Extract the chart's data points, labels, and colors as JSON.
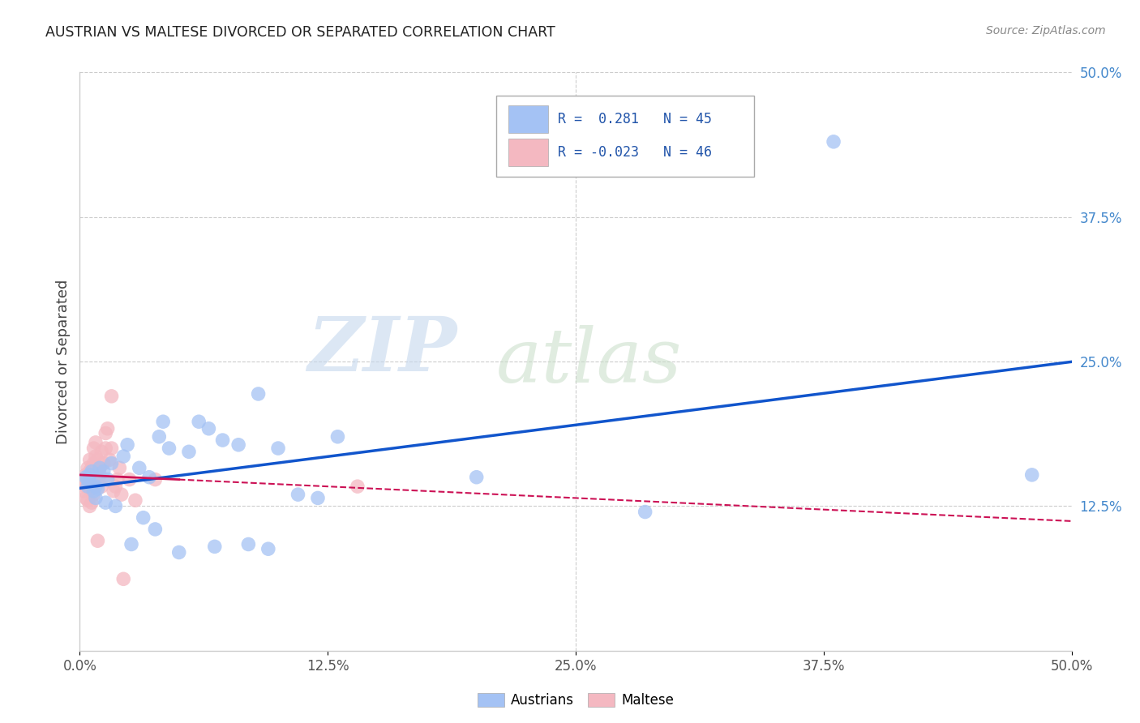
{
  "title": "AUSTRIAN VS MALTESE DIVORCED OR SEPARATED CORRELATION CHART",
  "source": "Source: ZipAtlas.com",
  "ylabel": "Divorced or Separated",
  "xlim": [
    0.0,
    0.5
  ],
  "ylim": [
    0.0,
    0.5
  ],
  "xtick_labels": [
    "0.0%",
    "12.5%",
    "25.0%",
    "37.5%",
    "50.0%"
  ],
  "xtick_values": [
    0.0,
    0.125,
    0.25,
    0.375,
    0.5
  ],
  "ytick_labels_right": [
    "50.0%",
    "37.5%",
    "25.0%",
    "12.5%"
  ],
  "ytick_values_right": [
    0.5,
    0.375,
    0.25,
    0.125
  ],
  "austrian_color": "#a4c2f4",
  "maltese_color": "#f4b8c1",
  "austrian_line_color": "#1155cc",
  "maltese_line_color": "#cc1155",
  "legend_austrian_label": "Austrians",
  "legend_maltese_label": "Maltese",
  "R_austrian": 0.281,
  "N_austrian": 45,
  "R_maltese": -0.023,
  "N_maltese": 46,
  "austrians_x": [
    0.003,
    0.004,
    0.004,
    0.005,
    0.005,
    0.006,
    0.007,
    0.007,
    0.008,
    0.008,
    0.009,
    0.01,
    0.012,
    0.013,
    0.014,
    0.016,
    0.018,
    0.022,
    0.024,
    0.026,
    0.03,
    0.032,
    0.035,
    0.038,
    0.04,
    0.042,
    0.045,
    0.05,
    0.055,
    0.06,
    0.065,
    0.068,
    0.072,
    0.08,
    0.085,
    0.09,
    0.095,
    0.1,
    0.11,
    0.12,
    0.13,
    0.2,
    0.285,
    0.38,
    0.48
  ],
  "austrians_y": [
    0.15,
    0.148,
    0.142,
    0.152,
    0.145,
    0.155,
    0.148,
    0.138,
    0.142,
    0.132,
    0.14,
    0.158,
    0.155,
    0.128,
    0.148,
    0.162,
    0.125,
    0.168,
    0.178,
    0.092,
    0.158,
    0.115,
    0.15,
    0.105,
    0.185,
    0.198,
    0.175,
    0.085,
    0.172,
    0.198,
    0.192,
    0.09,
    0.182,
    0.178,
    0.092,
    0.222,
    0.088,
    0.175,
    0.135,
    0.132,
    0.185,
    0.15,
    0.12,
    0.44,
    0.152
  ],
  "maltese_x": [
    0.002,
    0.002,
    0.003,
    0.003,
    0.003,
    0.004,
    0.004,
    0.004,
    0.005,
    0.005,
    0.005,
    0.005,
    0.006,
    0.006,
    0.006,
    0.006,
    0.007,
    0.007,
    0.007,
    0.008,
    0.008,
    0.008,
    0.009,
    0.009,
    0.01,
    0.01,
    0.011,
    0.011,
    0.012,
    0.012,
    0.013,
    0.013,
    0.014,
    0.015,
    0.016,
    0.016,
    0.017,
    0.018,
    0.019,
    0.02,
    0.021,
    0.022,
    0.025,
    0.028,
    0.038,
    0.14
  ],
  "maltese_y": [
    0.148,
    0.138,
    0.152,
    0.142,
    0.132,
    0.13,
    0.148,
    0.158,
    0.125,
    0.155,
    0.165,
    0.145,
    0.148,
    0.158,
    0.14,
    0.128,
    0.162,
    0.175,
    0.135,
    0.168,
    0.18,
    0.148,
    0.095,
    0.165,
    0.158,
    0.152,
    0.172,
    0.142,
    0.162,
    0.148,
    0.188,
    0.175,
    0.192,
    0.165,
    0.175,
    0.22,
    0.138,
    0.142,
    0.148,
    0.158,
    0.135,
    0.062,
    0.148,
    0.13,
    0.148,
    0.142
  ],
  "watermark": "ZIPatlas",
  "watermark_zip_color": "#c8d8ee",
  "watermark_atlas_color": "#d8e8d8"
}
